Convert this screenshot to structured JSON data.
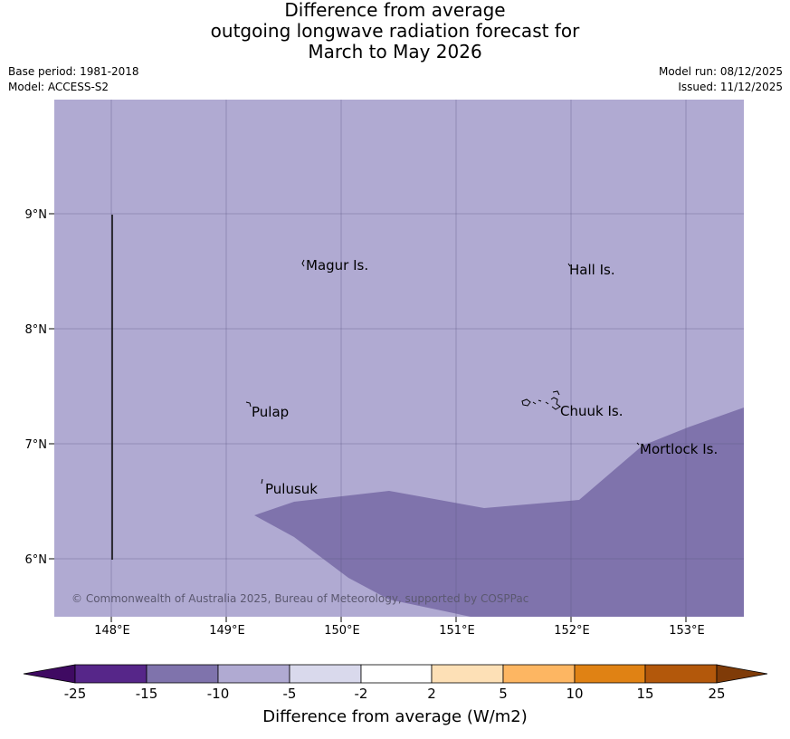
{
  "title": {
    "line1": "Difference from average",
    "line2": "outgoing longwave radiation forecast for",
    "line3": "March to May 2026"
  },
  "meta": {
    "base_period": "Base period: 1981-2018",
    "model": "Model: ACCESS-S2",
    "model_run": "Model run: 08/12/2025",
    "issued": "Issued: 11/12/2025"
  },
  "map": {
    "lon_labels": [
      "148°E",
      "149°E",
      "150°E",
      "151°E",
      "152°E",
      "153°E"
    ],
    "lat_labels": [
      "9°N",
      "8°N",
      "7°N",
      "6°N"
    ],
    "islands": [
      {
        "name": "Magur Is."
      },
      {
        "name": "Hall Is."
      },
      {
        "name": "Pulap"
      },
      {
        "name": "Chuuk Is."
      },
      {
        "name": "Mortlock Is."
      },
      {
        "name": "Pulusuk"
      }
    ],
    "copyright": "© Commonwealth of Australia 2025, Bureau of Meteorology, supported by COSPPac",
    "fill_colors": {
      "background_class": "#b0aad2",
      "anomaly_class": "#7f73ac"
    }
  },
  "colorbar": {
    "ticks": [
      "-25",
      "-15",
      "-10",
      "-5",
      "-2",
      "2",
      "5",
      "10",
      "15",
      "25"
    ],
    "colors": [
      "#3f0a62",
      "#562689",
      "#7f73ac",
      "#b0aad2",
      "#d9d9ec",
      "#ffffff",
      "#fde0b6",
      "#fdb662",
      "#e08214",
      "#b3580b",
      "#7f3b08"
    ],
    "label": "Difference from average (W/m2)"
  }
}
